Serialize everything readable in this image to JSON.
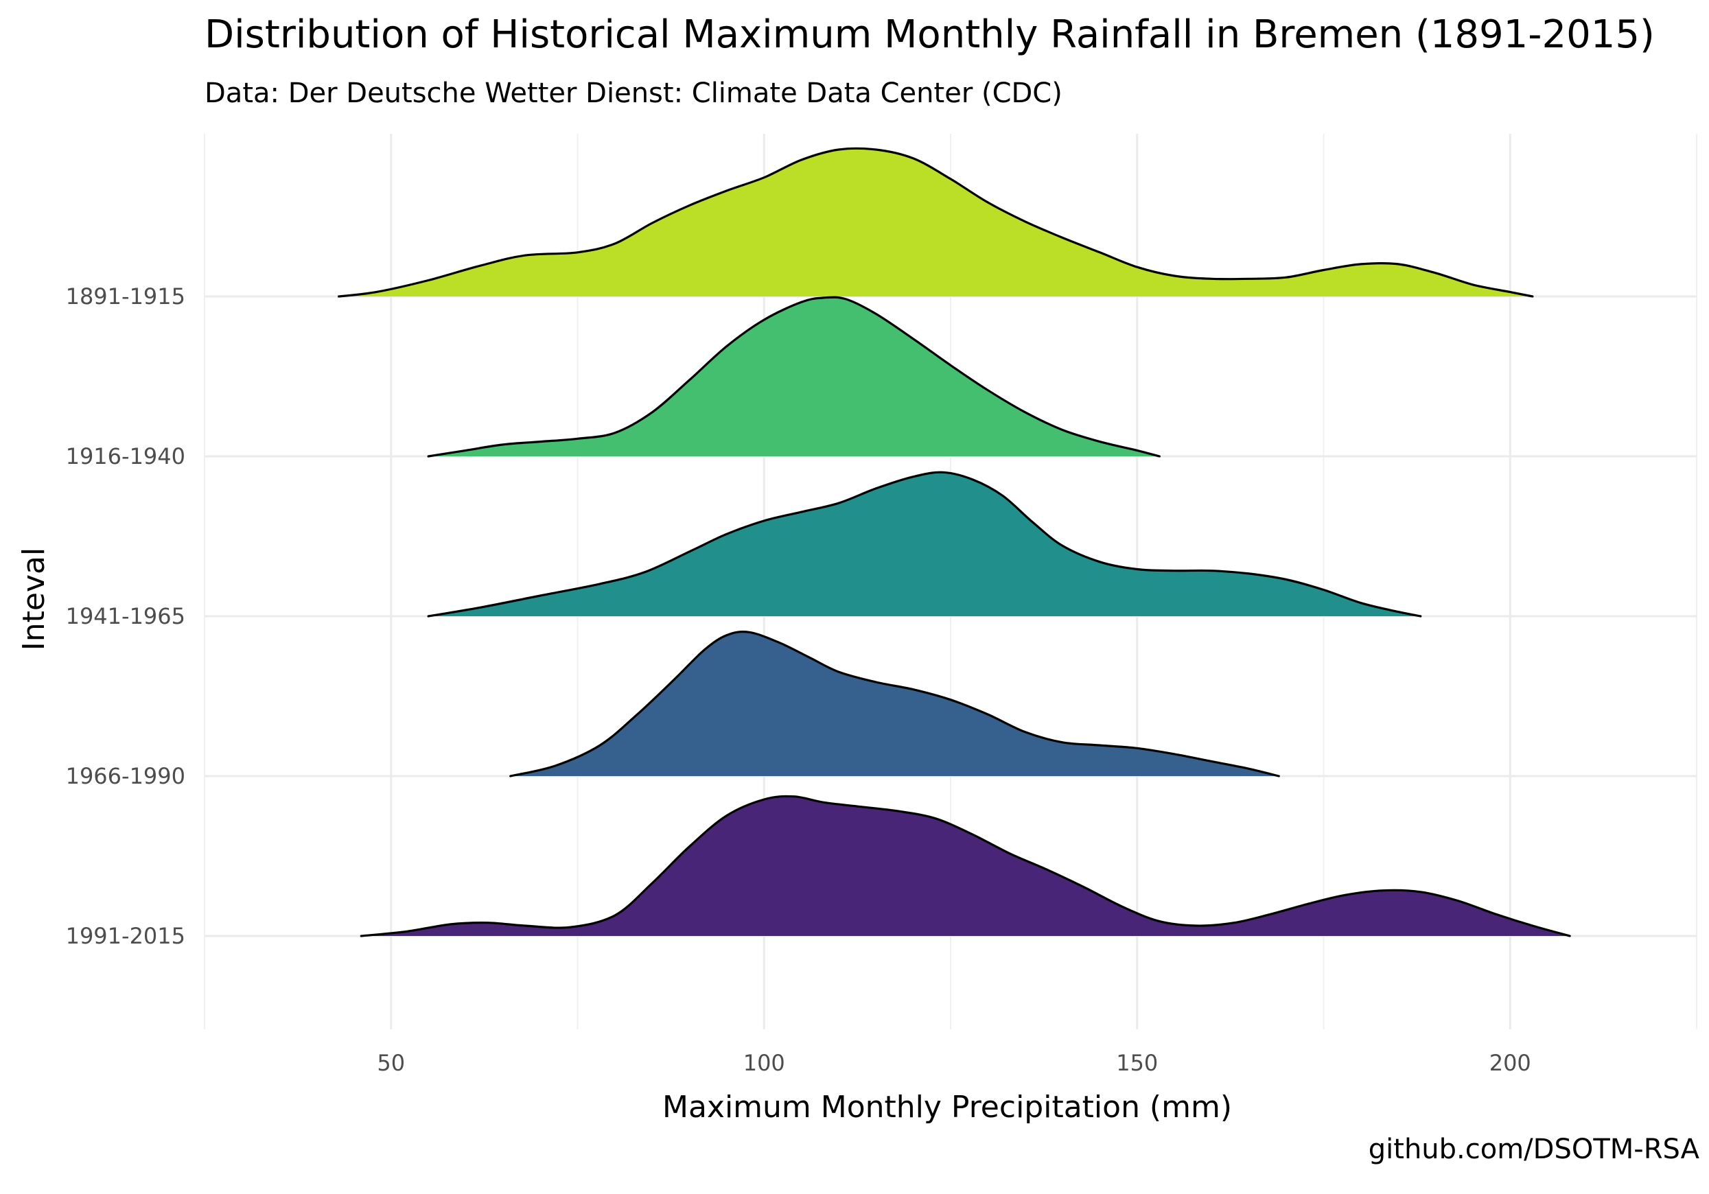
{
  "chart_data": {
    "type": "ridgeline",
    "title": "Distribution of Historical Maximum Monthly Rainfall in Bremen (1891-2015)",
    "subtitle": "Data: Der Deutsche Wetter Dienst: Climate Data Center (CDC)",
    "caption": "github.com/DSOTM-RSA",
    "xlabel": "Maximum Monthly Precipitation (mm)",
    "ylabel": "Inteval",
    "xlim": [
      25,
      225
    ],
    "x_ticks": [
      50,
      100,
      150,
      200
    ],
    "x_tick_labels": [
      "50",
      "100",
      "150",
      "200"
    ],
    "grid": true,
    "legend": "none",
    "series": [
      {
        "name": "1891-1915",
        "color": "#BADF26",
        "points": [
          [
            43,
            0.0
          ],
          [
            48,
            0.03
          ],
          [
            55,
            0.11
          ],
          [
            62,
            0.21
          ],
          [
            68,
            0.28
          ],
          [
            75,
            0.3
          ],
          [
            80,
            0.36
          ],
          [
            85,
            0.5
          ],
          [
            90,
            0.62
          ],
          [
            95,
            0.72
          ],
          [
            100,
            0.81
          ],
          [
            105,
            0.93
          ],
          [
            110,
            1.0
          ],
          [
            115,
            1.0
          ],
          [
            120,
            0.94
          ],
          [
            125,
            0.8
          ],
          [
            130,
            0.64
          ],
          [
            135,
            0.51
          ],
          [
            140,
            0.4
          ],
          [
            145,
            0.3
          ],
          [
            150,
            0.2
          ],
          [
            155,
            0.14
          ],
          [
            160,
            0.12
          ],
          [
            165,
            0.12
          ],
          [
            170,
            0.13
          ],
          [
            175,
            0.18
          ],
          [
            180,
            0.22
          ],
          [
            185,
            0.22
          ],
          [
            190,
            0.16
          ],
          [
            195,
            0.08
          ],
          [
            200,
            0.03
          ],
          [
            203,
            0.0
          ]
        ]
      },
      {
        "name": "1916-1940",
        "color": "#44BF70",
        "points": [
          [
            55,
            0.0
          ],
          [
            60,
            0.04
          ],
          [
            65,
            0.08
          ],
          [
            70,
            0.1
          ],
          [
            75,
            0.12
          ],
          [
            80,
            0.16
          ],
          [
            85,
            0.3
          ],
          [
            90,
            0.52
          ],
          [
            95,
            0.75
          ],
          [
            100,
            0.93
          ],
          [
            105,
            1.05
          ],
          [
            108,
            1.08
          ],
          [
            111,
            1.07
          ],
          [
            115,
            0.97
          ],
          [
            120,
            0.8
          ],
          [
            125,
            0.62
          ],
          [
            130,
            0.45
          ],
          [
            135,
            0.3
          ],
          [
            140,
            0.18
          ],
          [
            145,
            0.1
          ],
          [
            150,
            0.04
          ],
          [
            153,
            0.0
          ]
        ]
      },
      {
        "name": "1941-1965",
        "color": "#21908C",
        "points": [
          [
            55,
            0.0
          ],
          [
            62,
            0.06
          ],
          [
            70,
            0.14
          ],
          [
            78,
            0.22
          ],
          [
            84,
            0.3
          ],
          [
            90,
            0.44
          ],
          [
            95,
            0.56
          ],
          [
            100,
            0.65
          ],
          [
            105,
            0.71
          ],
          [
            110,
            0.77
          ],
          [
            115,
            0.87
          ],
          [
            120,
            0.95
          ],
          [
            124,
            0.98
          ],
          [
            128,
            0.93
          ],
          [
            132,
            0.82
          ],
          [
            136,
            0.64
          ],
          [
            140,
            0.48
          ],
          [
            145,
            0.37
          ],
          [
            150,
            0.32
          ],
          [
            155,
            0.31
          ],
          [
            160,
            0.31
          ],
          [
            165,
            0.29
          ],
          [
            170,
            0.25
          ],
          [
            175,
            0.18
          ],
          [
            180,
            0.09
          ],
          [
            185,
            0.03
          ],
          [
            188,
            0.0
          ]
        ]
      },
      {
        "name": "1966-1990",
        "color": "#36618E",
        "points": [
          [
            66,
            0.0
          ],
          [
            72,
            0.07
          ],
          [
            78,
            0.21
          ],
          [
            83,
            0.42
          ],
          [
            88,
            0.66
          ],
          [
            92,
            0.86
          ],
          [
            95,
            0.96
          ],
          [
            98,
            0.98
          ],
          [
            102,
            0.91
          ],
          [
            106,
            0.81
          ],
          [
            110,
            0.71
          ],
          [
            115,
            0.64
          ],
          [
            120,
            0.59
          ],
          [
            125,
            0.52
          ],
          [
            130,
            0.42
          ],
          [
            135,
            0.3
          ],
          [
            140,
            0.23
          ],
          [
            145,
            0.21
          ],
          [
            150,
            0.19
          ],
          [
            155,
            0.15
          ],
          [
            160,
            0.1
          ],
          [
            165,
            0.05
          ],
          [
            169,
            0.0
          ]
        ]
      },
      {
        "name": "1991-2015",
        "color": "#482576",
        "points": [
          [
            46,
            0.0
          ],
          [
            52,
            0.03
          ],
          [
            58,
            0.08
          ],
          [
            63,
            0.09
          ],
          [
            68,
            0.07
          ],
          [
            74,
            0.06
          ],
          [
            80,
            0.14
          ],
          [
            85,
            0.36
          ],
          [
            90,
            0.61
          ],
          [
            95,
            0.82
          ],
          [
            100,
            0.93
          ],
          [
            104,
            0.95
          ],
          [
            108,
            0.91
          ],
          [
            113,
            0.88
          ],
          [
            118,
            0.85
          ],
          [
            123,
            0.8
          ],
          [
            128,
            0.69
          ],
          [
            133,
            0.56
          ],
          [
            138,
            0.45
          ],
          [
            143,
            0.33
          ],
          [
            148,
            0.2
          ],
          [
            153,
            0.1
          ],
          [
            158,
            0.07
          ],
          [
            163,
            0.09
          ],
          [
            168,
            0.15
          ],
          [
            173,
            0.22
          ],
          [
            178,
            0.28
          ],
          [
            183,
            0.31
          ],
          [
            188,
            0.3
          ],
          [
            193,
            0.24
          ],
          [
            198,
            0.15
          ],
          [
            203,
            0.07
          ],
          [
            208,
            0.0
          ]
        ]
      }
    ]
  }
}
